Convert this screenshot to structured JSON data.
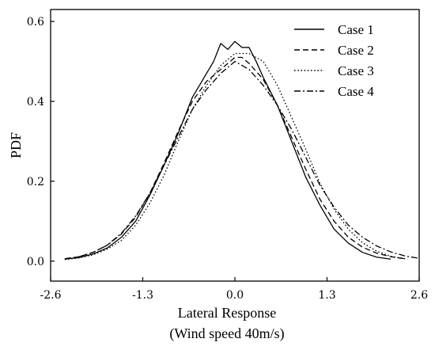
{
  "chart_data": {
    "type": "line",
    "xlabel": "Lateral Response",
    "xlabel_sub": "(Wind speed 40m/s)",
    "ylabel": "PDF",
    "xlim": [
      -2.6,
      2.6
    ],
    "ylim": [
      -0.05,
      0.63
    ],
    "xticks": [
      -2.6,
      -1.3,
      0.0,
      1.3,
      2.6
    ],
    "xtick_labels": [
      "-2.6",
      "-1.3",
      "0.0",
      "1.3",
      "2.6"
    ],
    "yticks": [
      0.0,
      0.2,
      0.4,
      0.6
    ],
    "ytick_labels": [
      "0.0",
      "0.2",
      "0.4",
      "0.6"
    ],
    "grid": false,
    "legend_position": "top-right",
    "series": [
      {
        "name": "Case 1",
        "style": "solid",
        "x": [
          -2.4,
          -2.2,
          -2.0,
          -1.8,
          -1.6,
          -1.4,
          -1.2,
          -1.0,
          -0.8,
          -0.6,
          -0.4,
          -0.3,
          -0.2,
          -0.1,
          0.0,
          0.1,
          0.2,
          0.3,
          0.4,
          0.6,
          0.8,
          1.0,
          1.2,
          1.4,
          1.6,
          1.8,
          2.0,
          2.2
        ],
        "y": [
          0.005,
          0.009,
          0.018,
          0.033,
          0.06,
          0.1,
          0.165,
          0.24,
          0.32,
          0.41,
          0.47,
          0.5,
          0.545,
          0.53,
          0.55,
          0.535,
          0.535,
          0.5,
          0.46,
          0.39,
          0.3,
          0.21,
          0.14,
          0.08,
          0.045,
          0.022,
          0.01,
          0.005
        ]
      },
      {
        "name": "Case 2",
        "style": "dashed",
        "x": [
          -2.4,
          -2.2,
          -2.0,
          -1.8,
          -1.6,
          -1.4,
          -1.2,
          -1.0,
          -0.8,
          -0.6,
          -0.4,
          -0.2,
          0.0,
          0.1,
          0.2,
          0.4,
          0.6,
          0.8,
          1.0,
          1.2,
          1.4,
          1.6,
          1.8,
          2.0,
          2.2,
          2.4
        ],
        "y": [
          0.006,
          0.011,
          0.022,
          0.04,
          0.068,
          0.11,
          0.17,
          0.245,
          0.325,
          0.4,
          0.45,
          0.48,
          0.51,
          0.51,
          0.495,
          0.455,
          0.39,
          0.31,
          0.23,
          0.155,
          0.1,
          0.06,
          0.035,
          0.02,
          0.011,
          0.006
        ]
      },
      {
        "name": "Case 3",
        "style": "dotted",
        "x": [
          -2.4,
          -2.2,
          -2.0,
          -1.8,
          -1.6,
          -1.4,
          -1.2,
          -1.0,
          -0.8,
          -0.6,
          -0.4,
          -0.2,
          0.0,
          0.2,
          0.4,
          0.6,
          0.8,
          1.0,
          1.2,
          1.4,
          1.6,
          1.8,
          2.0,
          2.2,
          2.4
        ],
        "y": [
          0.004,
          0.008,
          0.016,
          0.03,
          0.052,
          0.09,
          0.145,
          0.215,
          0.3,
          0.38,
          0.44,
          0.49,
          0.52,
          0.52,
          0.5,
          0.44,
          0.36,
          0.28,
          0.195,
          0.13,
          0.08,
          0.046,
          0.025,
          0.012,
          0.006
        ]
      },
      {
        "name": "Case 4",
        "style": "dashdot",
        "x": [
          -2.4,
          -2.2,
          -2.0,
          -1.8,
          -1.6,
          -1.4,
          -1.2,
          -1.0,
          -0.8,
          -0.6,
          -0.4,
          -0.2,
          0.0,
          0.2,
          0.4,
          0.6,
          0.8,
          1.0,
          1.2,
          1.4,
          1.6,
          1.8,
          2.0,
          2.2,
          2.4,
          2.6
        ],
        "y": [
          0.006,
          0.011,
          0.022,
          0.04,
          0.07,
          0.113,
          0.17,
          0.24,
          0.31,
          0.38,
          0.43,
          0.47,
          0.5,
          0.48,
          0.44,
          0.39,
          0.33,
          0.26,
          0.19,
          0.135,
          0.09,
          0.06,
          0.038,
          0.023,
          0.013,
          0.007
        ]
      }
    ]
  }
}
